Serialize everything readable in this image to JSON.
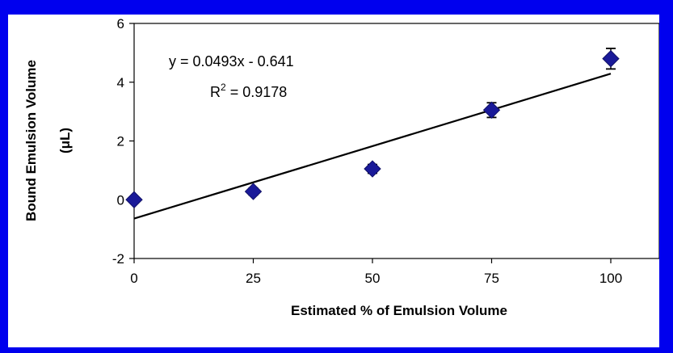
{
  "chart_data": {
    "type": "scatter",
    "xlabel": "Estimated % of Emulsion Volume",
    "ylabel_line1": "Bound Emulsion Volume",
    "ylabel_line2": "(μL)",
    "x_ticks": [
      "0",
      "25",
      "50",
      "75",
      "100"
    ],
    "y_ticks": [
      "-2",
      "0",
      "2",
      "4",
      "6"
    ],
    "xlim": [
      0,
      100
    ],
    "ylim": [
      -2,
      6
    ],
    "grid": false,
    "series": [
      {
        "x": [
          0,
          25,
          50,
          75,
          100
        ],
        "y": [
          0.0,
          0.28,
          1.05,
          3.05,
          4.8
        ],
        "error": [
          0.0,
          0.12,
          0.15,
          0.25,
          0.35
        ],
        "marker": "diamond",
        "color": "#1a1a99"
      }
    ],
    "trendline": {
      "slope": 0.0493,
      "intercept": -0.641,
      "equation": "y = 0.0493x - 0.641",
      "r2_prefix": "R",
      "r2_sup": "2",
      "r2_value": " = 0.9178"
    }
  },
  "colors": {
    "frame": "#0000ee",
    "background": "#ffffff",
    "marker": "#1a1a99"
  }
}
